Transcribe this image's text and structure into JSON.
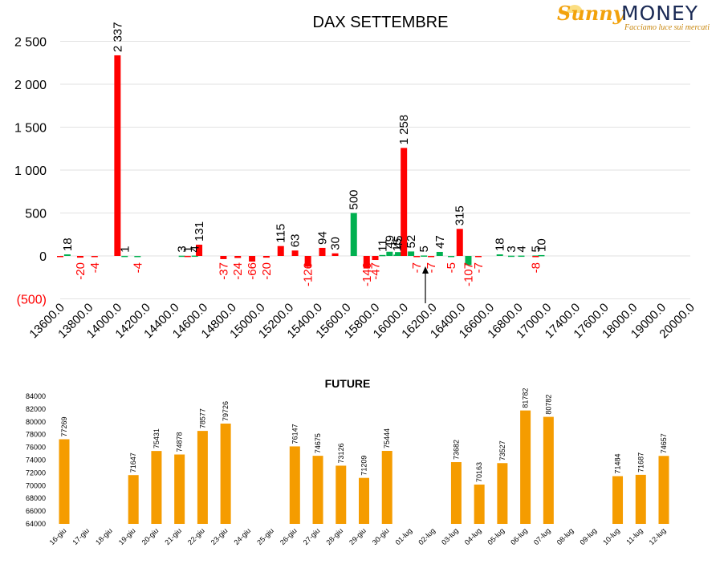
{
  "brand": {
    "sunny": "Sunny",
    "money": "MONEY",
    "tagline": "Facciamo luce sui mercati"
  },
  "colors": {
    "red": "#ff0000",
    "green": "#00b050",
    "orange": "#f59c00",
    "neg_label": "#ff0000",
    "grid": "#d9d9d9"
  },
  "chart_data": [
    {
      "type": "bar",
      "title": "DAX SETTEMBRE",
      "xlabel": "",
      "ylabel": "",
      "ylim": [
        -500,
        2500
      ],
      "yticks": [
        "(500)",
        "0",
        "500",
        "1 000",
        "1 500",
        "2 000",
        "2 500"
      ],
      "ytick_values": [
        -500,
        0,
        500,
        1000,
        1500,
        2000,
        2500
      ],
      "x_tick_labels": [
        "13600.0",
        "13800.0",
        "14000.0",
        "14200.0",
        "14400.0",
        "14600.0",
        "14800.0",
        "15000.0",
        "15200.0",
        "15400.0",
        "15600.0",
        "15800.0",
        "16000.0",
        "16200.0",
        "16400.0",
        "16600.0",
        "16800.0",
        "17000.0",
        "17400.0",
        "17600.0",
        "18000.0",
        "19000.0",
        "20000.0"
      ],
      "grid": true,
      "marker_note": "arrow pointing up near 16200",
      "series": [
        {
          "color": "green",
          "points": [
            {
              "tick": 0,
              "offset": 0.25,
              "value": 18,
              "label": "18"
            },
            {
              "tick": 2,
              "offset": 0.25,
              "value": 1,
              "label": "1"
            },
            {
              "tick": 3,
              "offset": -0.3,
              "value": -4,
              "label": "-4"
            },
            {
              "tick": 4,
              "offset": 0.25,
              "value": 3,
              "label": "3"
            },
            {
              "tick": 4,
              "offset": 0.7,
              "value": 4,
              "label": "4"
            },
            {
              "tick": 10,
              "offset": 0.25,
              "value": 500,
              "label": "500"
            },
            {
              "tick": 11,
              "offset": 0.25,
              "value": 11,
              "label": "11"
            },
            {
              "tick": 11,
              "offset": 0.5,
              "value": 49,
              "label": "49"
            },
            {
              "tick": 11,
              "offset": 0.75,
              "value": 15,
              "label": "15"
            },
            {
              "tick": 12,
              "offset": -0.2,
              "value": 45,
              "label": "45"
            },
            {
              "tick": 12,
              "offset": 0.25,
              "value": 52,
              "label": "52"
            },
            {
              "tick": 13,
              "offset": -0.3,
              "value": 5,
              "label": "5"
            },
            {
              "tick": 13,
              "offset": 0.25,
              "value": 47,
              "label": "47"
            },
            {
              "tick": 14,
              "offset": -0.35,
              "value": -5,
              "label": "-5"
            },
            {
              "tick": 14,
              "offset": 0.25,
              "value": -107,
              "label": "-107"
            },
            {
              "tick": 15,
              "offset": 0.35,
              "value": 18,
              "label": "18"
            },
            {
              "tick": 15,
              "offset": 0.75,
              "value": 3,
              "label": "3"
            },
            {
              "tick": 16,
              "offset": 0.1,
              "value": 4,
              "label": "4"
            },
            {
              "tick": 16,
              "offset": 0.6,
              "value": 5,
              "label": "5"
            },
            {
              "tick": 16,
              "offset": 0.8,
              "value": 10,
              "label": "10"
            }
          ]
        },
        {
          "color": "red",
          "points": [
            {
              "tick": 0,
              "offset": 0,
              "value": 0,
              "label": ""
            },
            {
              "tick": 1,
              "offset": -0.3,
              "value": -20,
              "label": "-20"
            },
            {
              "tick": 1,
              "offset": 0.2,
              "value": -4,
              "label": "-4"
            },
            {
              "tick": 2,
              "offset": 0.0,
              "value": 2337,
              "label": "2 337"
            },
            {
              "tick": 4,
              "offset": 0.45,
              "value": 1,
              "label": "1"
            },
            {
              "tick": 5,
              "offset": -0.15,
              "value": 131,
              "label": "131"
            },
            {
              "tick": 6,
              "offset": -0.3,
              "value": -37,
              "label": "-37"
            },
            {
              "tick": 6,
              "offset": 0.2,
              "value": -24,
              "label": "-24"
            },
            {
              "tick": 7,
              "offset": -0.3,
              "value": -66,
              "label": "-66"
            },
            {
              "tick": 7,
              "offset": 0.2,
              "value": -20,
              "label": "-20"
            },
            {
              "tick": 8,
              "offset": -0.3,
              "value": 115,
              "label": "115"
            },
            {
              "tick": 8,
              "offset": 0.2,
              "value": 63,
              "label": "63"
            },
            {
              "tick": 9,
              "offset": -0.35,
              "value": -126,
              "label": "-126"
            },
            {
              "tick": 9,
              "offset": 0.15,
              "value": 94,
              "label": "94"
            },
            {
              "tick": 9,
              "offset": 0.6,
              "value": 30,
              "label": "30"
            },
            {
              "tick": 11,
              "offset": -0.3,
              "value": -146,
              "label": "-146"
            },
            {
              "tick": 11,
              "offset": 0.0,
              "value": -47,
              "label": "-47"
            },
            {
              "tick": 12,
              "offset": 0.0,
              "value": 1258,
              "label": "1 258"
            },
            {
              "tick": 13,
              "offset": -0.55,
              "value": -7,
              "label": "-7"
            },
            {
              "tick": 13,
              "offset": -0.05,
              "value": -7,
              "label": "-7"
            },
            {
              "tick": 14,
              "offset": -0.05,
              "value": 315,
              "label": "315"
            },
            {
              "tick": 14,
              "offset": 0.6,
              "value": -7,
              "label": "-7"
            },
            {
              "tick": 17,
              "offset": -0.4,
              "value": -8,
              "label": "-8"
            }
          ]
        }
      ]
    },
    {
      "type": "bar",
      "title": "FUTURE",
      "xlabel": "",
      "ylabel": "",
      "ylim": [
        64000,
        84000
      ],
      "yticks": [
        "64000",
        "66000",
        "68000",
        "70000",
        "72000",
        "74000",
        "76000",
        "78000",
        "80000",
        "82000",
        "84000"
      ],
      "categories": [
        "16-giu",
        "17-giu",
        "18-giu",
        "19-giu",
        "20-giu",
        "21-giu",
        "22-giu",
        "23-giu",
        "24-giu",
        "25-giu",
        "26-giu",
        "27-giu",
        "28-giu",
        "29-giu",
        "30-giu",
        "01-lug",
        "02-lug",
        "03-lug",
        "04-lug",
        "05-lug",
        "06-lug",
        "07-lug",
        "08-lug",
        "09-lug",
        "10-lug",
        "11-lug",
        "12-lug"
      ],
      "values": [
        77269,
        null,
        null,
        71647,
        75431,
        74878,
        78577,
        79726,
        null,
        null,
        76147,
        74675,
        73126,
        71209,
        75444,
        null,
        null,
        73682,
        70163,
        73527,
        81782,
        80782,
        null,
        null,
        71484,
        71687,
        74657
      ],
      "grid": false
    }
  ]
}
